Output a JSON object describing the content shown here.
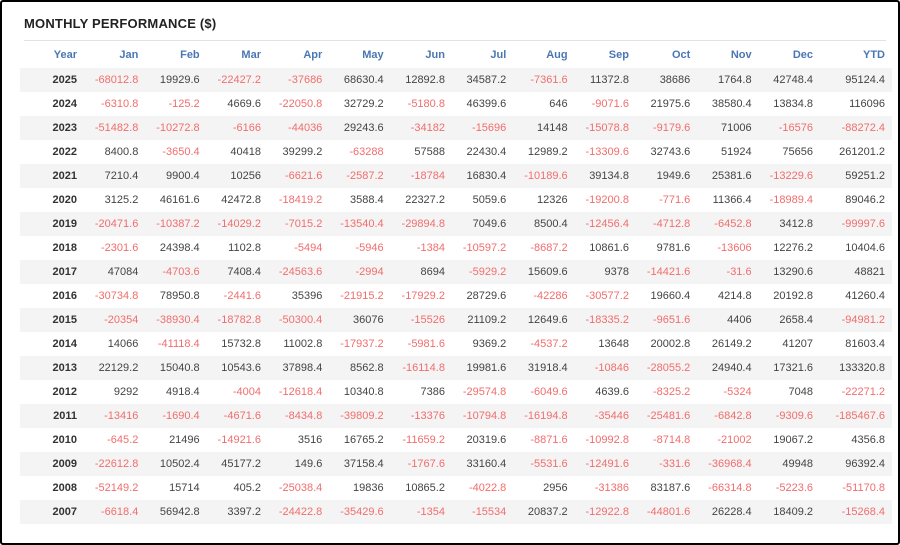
{
  "title": "MONTHLY PERFORMANCE ($)",
  "colors": {
    "header_text": "#4a77b4",
    "negative_value": "#f26d6d",
    "positive_value": "#444444",
    "year_text": "#333333",
    "row_stripe": "#f4f4f4",
    "outer_border": "#000000",
    "divider": "#e2e2e2"
  },
  "table": {
    "columns": [
      "Year",
      "Jan",
      "Feb",
      "Mar",
      "Apr",
      "May",
      "Jun",
      "Jul",
      "Aug",
      "Sep",
      "Oct",
      "Nov",
      "Dec",
      "YTD"
    ],
    "rows": [
      {
        "year": "2025",
        "values": [
          -68012.8,
          19929.6,
          -22427.2,
          -37686,
          68630.4,
          12892.8,
          34587.2,
          -7361.6,
          11372.8,
          38686,
          1764.8,
          42748.4,
          95124.4
        ]
      },
      {
        "year": "2024",
        "values": [
          -6310.8,
          -125.2,
          4669.6,
          -22050.8,
          32729.2,
          -5180.8,
          46399.6,
          646,
          -9071.6,
          21975.6,
          38580.4,
          13834.8,
          116096
        ]
      },
      {
        "year": "2023",
        "values": [
          -51482.8,
          -10272.8,
          -6166,
          -44036,
          29243.6,
          -34182,
          -15696,
          14148,
          -15078.8,
          -9179.6,
          71006,
          -16576,
          -88272.4
        ]
      },
      {
        "year": "2022",
        "values": [
          8400.8,
          -3650.4,
          40418,
          39299.2,
          -63288,
          57588,
          22430.4,
          12989.2,
          -13309.6,
          32743.6,
          51924,
          75656,
          261201.2
        ]
      },
      {
        "year": "2021",
        "values": [
          7210.4,
          9900.4,
          10256,
          -6621.6,
          -2587.2,
          -18784,
          16830.4,
          -10189.6,
          39134.8,
          1949.6,
          25381.6,
          -13229.6,
          59251.2
        ]
      },
      {
        "year": "2020",
        "values": [
          3125.2,
          46161.6,
          42472.8,
          -18419.2,
          3588.4,
          22327.2,
          5059.6,
          12326,
          -19200.8,
          -771.6,
          11366.4,
          -18989.4,
          89046.2
        ]
      },
      {
        "year": "2019",
        "values": [
          -20471.6,
          -10387.2,
          -14029.2,
          -7015.2,
          -13540.4,
          -29894.8,
          7049.6,
          8500.4,
          -12456.4,
          -4712.8,
          -6452.8,
          3412.8,
          -99997.6
        ]
      },
      {
        "year": "2018",
        "values": [
          -2301.6,
          24398.4,
          1102.8,
          -5494,
          -5946,
          -1384,
          -10597.2,
          -8687.2,
          10861.6,
          9781.6,
          -13606,
          12276.2,
          10404.6
        ]
      },
      {
        "year": "2017",
        "values": [
          47084,
          -4703.6,
          7408.4,
          -24563.6,
          -2994,
          8694,
          -5929.2,
          15609.6,
          9378,
          -14421.6,
          -31.6,
          13290.6,
          48821
        ]
      },
      {
        "year": "2016",
        "values": [
          -30734.8,
          78950.8,
          -2441.6,
          35396,
          -21915.2,
          -17929.2,
          28729.6,
          -42286,
          -30577.2,
          19660.4,
          4214.8,
          20192.8,
          41260.4
        ]
      },
      {
        "year": "2015",
        "values": [
          -20354,
          -38930.4,
          -18782.8,
          -50300.4,
          36076,
          -15526,
          21109.2,
          12649.6,
          -18335.2,
          -9651.6,
          4406,
          2658.4,
          -94981.2
        ]
      },
      {
        "year": "2014",
        "values": [
          14066,
          -41118.4,
          15732.8,
          11002.8,
          -17937.2,
          -5981.6,
          9369.2,
          -4537.2,
          13648,
          20002.8,
          26149.2,
          41207,
          81603.4
        ]
      },
      {
        "year": "2013",
        "values": [
          22129.2,
          15040.8,
          10543.6,
          37898.4,
          8562.8,
          -16114.8,
          19981.6,
          31918.4,
          -10846,
          -28055.2,
          24940.4,
          17321.6,
          133320.8
        ]
      },
      {
        "year": "2012",
        "values": [
          9292,
          4918.4,
          -4004,
          -12618.4,
          10340.8,
          7386,
          -29574.8,
          -6049.6,
          4639.6,
          -8325.2,
          -5324,
          7048,
          -22271.2
        ]
      },
      {
        "year": "2011",
        "values": [
          -13416,
          -1690.4,
          -4671.6,
          -8434.8,
          -39809.2,
          -13376,
          -10794.8,
          -16194.8,
          -35446,
          -25481.6,
          -6842.8,
          -9309.6,
          -185467.6
        ]
      },
      {
        "year": "2010",
        "values": [
          -645.2,
          21496,
          -14921.6,
          3516,
          16765.2,
          -11659.2,
          20319.6,
          -8871.6,
          -10992.8,
          -8714.8,
          -21002,
          19067.2,
          4356.8
        ]
      },
      {
        "year": "2009",
        "values": [
          -22612.8,
          10502.4,
          45177.2,
          149.6,
          37158.4,
          -1767.6,
          33160.4,
          -5531.6,
          -12491.6,
          -331.6,
          -36968.4,
          49948,
          96392.4
        ]
      },
      {
        "year": "2008",
        "values": [
          -52149.2,
          15714,
          405.2,
          -25038.4,
          19836,
          10865.2,
          -4022.8,
          2956,
          -31386,
          83187.6,
          -66314.8,
          -5223.6,
          -51170.8
        ]
      },
      {
        "year": "2007",
        "values": [
          -6618.4,
          56942.8,
          3397.2,
          -24422.8,
          -35429.6,
          -1354,
          -15534,
          20837.2,
          -12922.8,
          -44801.6,
          26228.4,
          18409.2,
          -15268.4
        ]
      }
    ]
  }
}
